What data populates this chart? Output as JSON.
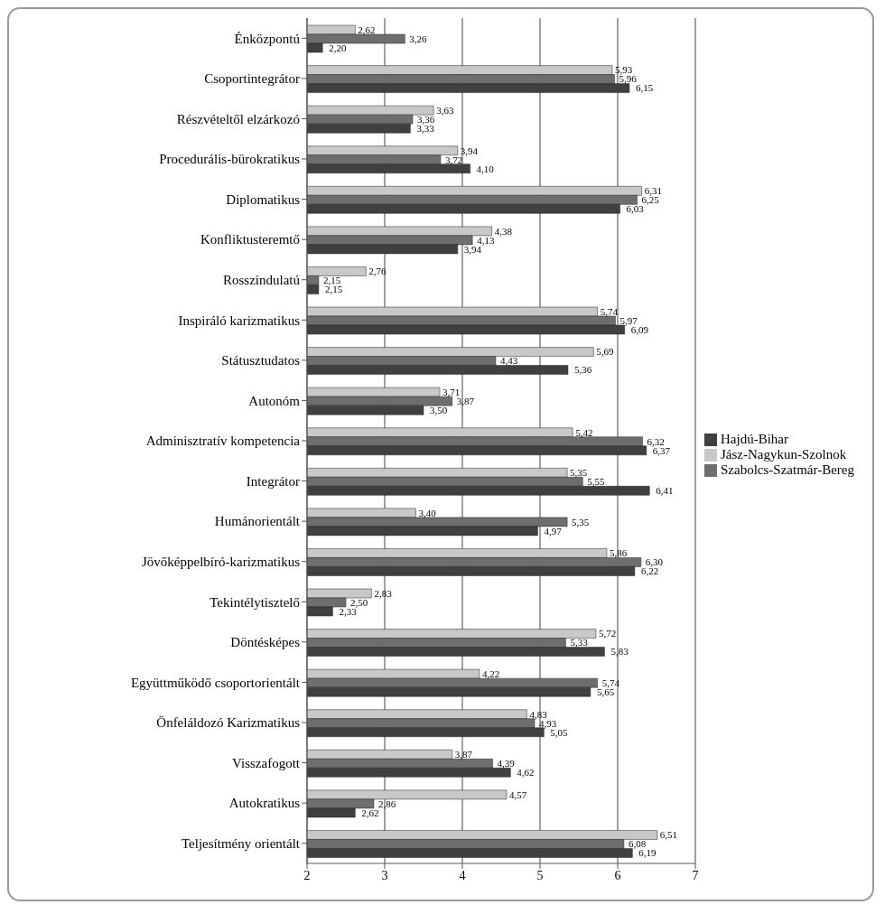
{
  "chart_data": {
    "type": "bar",
    "orientation": "horizontal",
    "categories": [
      "Énközpontú",
      "Csoportintegrátor",
      "Részvételtől elzárkozó",
      "Procedurális-bürokratikus",
      "Diplomatikus",
      "Konfliktusteremtő",
      "Rosszindulatú",
      "Inspiráló karizmatikus",
      "Státusztudatos",
      "Autonóm",
      "Adminisztratív kompetencia",
      "Integrátor",
      "Humánorientált",
      "Jövőképpelbíró-karizmatikus",
      "Tekintélytisztelő",
      "Döntésképes",
      "Együttműködő csoportorientált",
      "Önfeláldozó Karizmatikus",
      "Visszafogott",
      "Autokratikus",
      "Teljesítmény orientált"
    ],
    "series": [
      {
        "name": "Jász-Nagykun-Szolnok",
        "color": "#c8c8c8",
        "values": [
          2.62,
          5.93,
          3.63,
          3.94,
          6.31,
          4.38,
          2.76,
          5.74,
          5.69,
          3.71,
          5.42,
          5.35,
          3.4,
          5.86,
          2.83,
          5.72,
          4.22,
          4.83,
          3.87,
          4.57,
          6.51
        ],
        "value_labels": [
          "2,62",
          "5,93",
          "3,63",
          "3,94",
          "6,31",
          "4,38",
          "2,76",
          "5,74",
          "5,69",
          "3,71",
          "5,42",
          "5,35",
          "3,40",
          "5,86",
          "2,83",
          "5,72",
          "4,22",
          "4,83",
          "3,87",
          "4,57",
          "6,51"
        ]
      },
      {
        "name": "Szabolcs-Szatmár-Bereg",
        "color": "#6e6e6e",
        "values": [
          3.26,
          5.96,
          3.36,
          3.72,
          6.25,
          4.13,
          2.15,
          5.97,
          4.43,
          3.87,
          6.32,
          5.55,
          5.35,
          6.3,
          2.5,
          5.33,
          5.74,
          4.93,
          4.39,
          2.86,
          6.08
        ],
        "value_labels": [
          "3,26",
          "5,96",
          "3,36",
          "3,72",
          "6,25",
          "4,13",
          "2,15",
          "5,97",
          "4,43",
          "3,87",
          "6,32",
          "5,55",
          "5,35",
          "6,30",
          "2,50",
          "5,33",
          "5,74",
          "4,93",
          "4,39",
          "2,86",
          "6,08"
        ]
      },
      {
        "name": "Hajdú-Bihar",
        "color": "#404040",
        "values": [
          2.2,
          6.15,
          3.33,
          4.1,
          6.03,
          3.94,
          2.15,
          6.09,
          5.36,
          3.5,
          6.37,
          6.41,
          4.97,
          6.22,
          2.33,
          5.83,
          5.65,
          5.05,
          4.62,
          2.62,
          6.19
        ],
        "value_labels": [
          "2,20",
          "6,15",
          "3,33",
          "4,10",
          "6,03",
          "3,94",
          "2,15",
          "6,09",
          "5,36",
          "3,50",
          "6,37",
          "6,41",
          "4,97",
          "6,22",
          "2,33",
          "5,83",
          "5,65",
          "5,05",
          "4,62",
          "2,62",
          "6,19"
        ]
      }
    ],
    "xlim": [
      2,
      7
    ],
    "xticks": [
      2,
      3,
      4,
      5,
      6,
      7
    ],
    "grid": "x",
    "legend": "right"
  }
}
